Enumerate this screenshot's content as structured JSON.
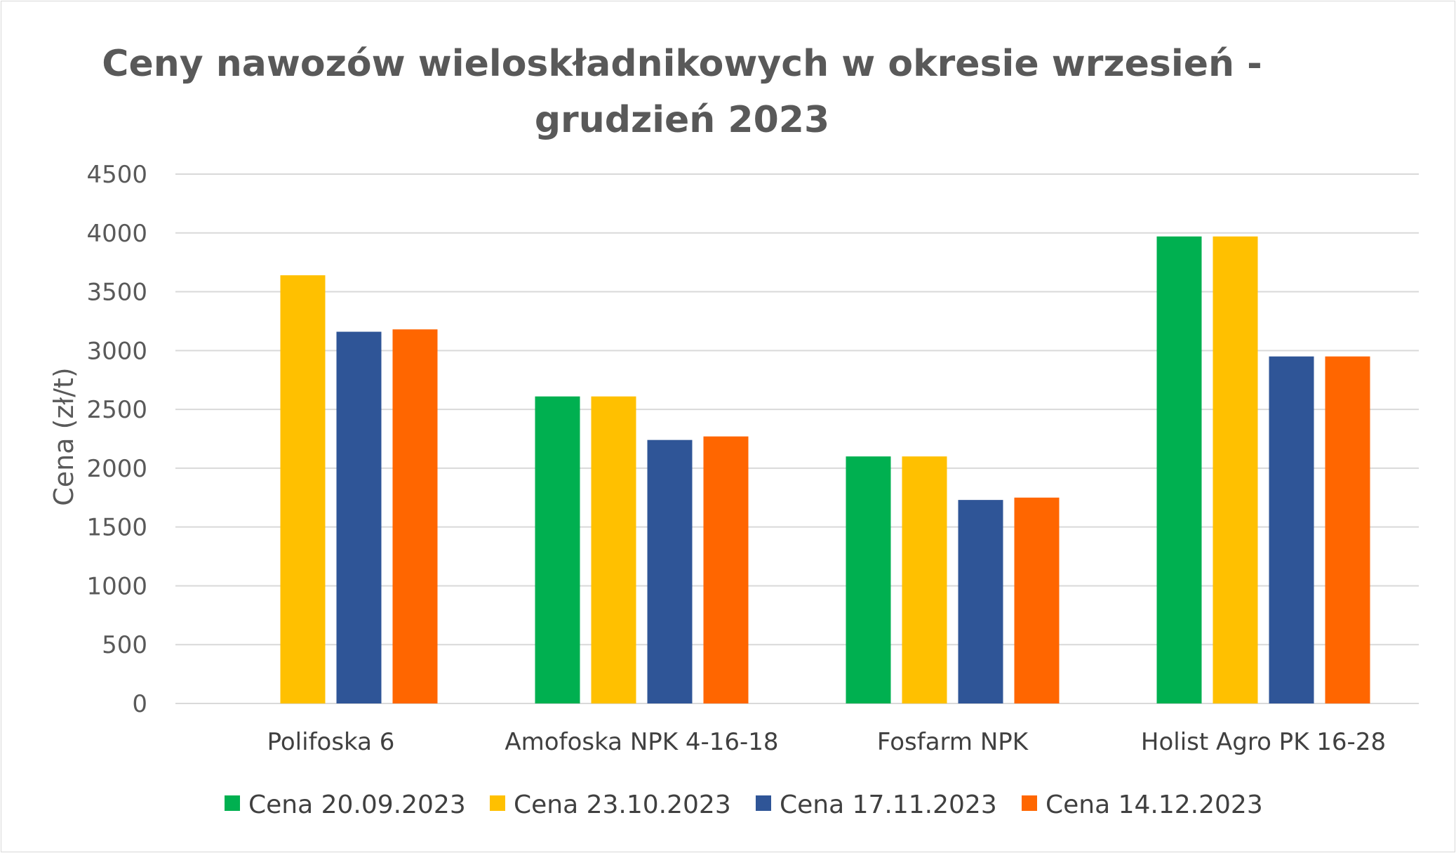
{
  "chart_data": {
    "type": "bar",
    "title_line1": "Ceny nawozów wieloskładnikowych w okresie wrzesień -",
    "title_line2": "grudzień 2023",
    "xlabel": "",
    "ylabel": "Cena (zł/t)",
    "ylim": [
      0,
      4500
    ],
    "yticks": [
      "0",
      "500",
      "1000",
      "1500",
      "2000",
      "2500",
      "3000",
      "3500",
      "4000",
      "4500"
    ],
    "grid": true,
    "legend_position": "bottom",
    "categories": [
      "Polifoska 6",
      "Amofoska NPK 4-16-18",
      "Fosfarm NPK",
      "Holist Agro PK 16-28"
    ],
    "series": [
      {
        "name": "Cena 20.09.2023",
        "color": "#00b050",
        "values": [
          null,
          2610,
          2100,
          3970
        ]
      },
      {
        "name": "Cena 23.10.2023",
        "color": "#ffc000",
        "values": [
          3640,
          2610,
          2100,
          3970
        ]
      },
      {
        "name": "Cena 17.11.2023",
        "color": "#2f5597",
        "values": [
          3160,
          2240,
          1730,
          2950
        ]
      },
      {
        "name": "Cena 14.12.2023",
        "color": "#ff6600",
        "values": [
          3180,
          2270,
          1750,
          2950
        ]
      }
    ]
  }
}
